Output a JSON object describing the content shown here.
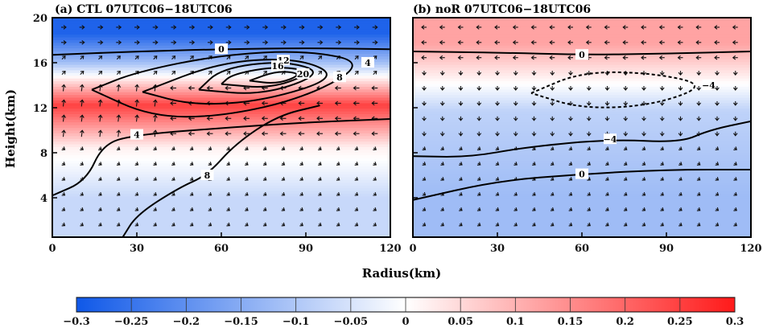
{
  "figure": {
    "xlabel": "Radius(km)",
    "ylabel": "Height(km)"
  },
  "chart_data": [
    {
      "type": "heatmap",
      "title": "(a) CTL 07UTC06−18UTC06",
      "xlabel": "Radius(km)",
      "ylabel": "Height(km)",
      "xlim": [
        0,
        120
      ],
      "ylim": [
        0.5,
        20
      ],
      "xticks": [
        0,
        30,
        60,
        90,
        120
      ],
      "yticks": [
        4,
        8,
        12,
        16,
        20
      ],
      "color_bands": [
        {
          "z": [
            0.5,
            7.5
          ],
          "value": -0.07
        },
        {
          "z": [
            7.5,
            9.5
          ],
          "value": 0.02
        },
        {
          "z": [
            9.5,
            15
          ],
          "value": 0.25
        },
        {
          "z": [
            15,
            17.2
          ],
          "value": -0.12
        },
        {
          "z": [
            17.2,
            20
          ],
          "value": -0.28
        }
      ],
      "contour_labels": [
        "0",
        "4",
        "8",
        "12",
        "16",
        "20",
        "4",
        "8",
        "0",
        "0"
      ],
      "contours": [
        {
          "level": 0,
          "points": [
            [
              0,
              16.7
            ],
            [
              30,
              17.0
            ],
            [
              60,
              17.2
            ],
            [
              90,
              17.3
            ],
            [
              120,
              17.2
            ]
          ]
        },
        {
          "level": 4,
          "points": [
            [
              14,
              13.6
            ],
            [
              35,
              11.2
            ],
            [
              60,
              11.2
            ],
            [
              90,
              12.9
            ],
            [
              112,
              16.0
            ],
            [
              90,
              17.1
            ],
            [
              60,
              16.7
            ],
            [
              30,
              15.2
            ],
            [
              14,
              13.6
            ]
          ]
        },
        {
          "level": 8,
          "points": [
            [
              32,
              13.4
            ],
            [
              50,
              12.2
            ],
            [
              75,
              12.6
            ],
            [
              102,
              14.7
            ],
            [
              88,
              16.4
            ],
            [
              60,
              16.1
            ],
            [
              32,
              13.4
            ]
          ]
        },
        {
          "level": 12,
          "points": [
            [
              52,
              13.6
            ],
            [
              75,
              13.1
            ],
            [
              97,
              15.1
            ],
            [
              82,
              16.2
            ],
            [
              60,
              15.5
            ],
            [
              52,
              13.6
            ]
          ]
        },
        {
          "level": 16,
          "points": [
            [
              60,
              14.1
            ],
            [
              78,
              13.7
            ],
            [
              93,
              15.2
            ],
            [
              80,
              15.7
            ],
            [
              64,
              15.0
            ],
            [
              60,
              14.1
            ]
          ]
        },
        {
          "level": 20,
          "points": [
            [
              70,
              14.4
            ],
            [
              80,
              14.1
            ],
            [
              89,
              15.0
            ],
            [
              80,
              15.3
            ],
            [
              70,
              14.4
            ]
          ]
        },
        {
          "level": 0,
          "points": [
            [
              0,
              4.2
            ],
            [
              12,
              5.5
            ],
            [
              18,
              8.8
            ],
            [
              30,
              9.6
            ],
            [
              60,
              10.2
            ],
            [
              90,
              10.7
            ],
            [
              120,
              11.0
            ]
          ]
        },
        {
          "level": 0,
          "points": [
            [
              25,
              0.5
            ],
            [
              30,
              2.5
            ],
            [
              45,
              4.9
            ],
            [
              55,
              6.0
            ],
            [
              65,
              8.8
            ],
            [
              80,
              11.3
            ],
            [
              95,
              12.2
            ]
          ]
        }
      ]
    },
    {
      "type": "heatmap",
      "title": "(b) noR 07UTC06−18UTC06",
      "xlabel": "Radius(km)",
      "ylabel": "",
      "xlim": [
        0,
        120
      ],
      "ylim": [
        0.5,
        20
      ],
      "xticks": [
        0,
        30,
        60,
        90,
        120
      ],
      "yticks": [
        4,
        8,
        12,
        16,
        20
      ],
      "color_bands": [
        {
          "z": [
            0.5,
            8
          ],
          "value": -0.12
        },
        {
          "z": [
            8,
            15.5
          ],
          "value": -0.08
        },
        {
          "z": [
            15.5,
            20
          ],
          "value": 0.12
        }
      ],
      "contour_labels": [
        "0",
        "−4",
        "−4",
        "0"
      ],
      "contours": [
        {
          "level": 0,
          "points": [
            [
              0,
              17.0
            ],
            [
              30,
              16.9
            ],
            [
              60,
              16.7
            ],
            [
              90,
              16.8
            ],
            [
              120,
              17.0
            ]
          ]
        },
        {
          "level": -4,
          "points": [
            [
              42,
              13.3
            ],
            [
              60,
              15.2
            ],
            [
              85,
              15.1
            ],
            [
              105,
              14.0
            ],
            [
              85,
              12.2
            ],
            [
              60,
              11.9
            ],
            [
              42,
              13.3
            ]
          ]
        },
        {
          "level": 0,
          "points": [
            [
              0,
              7.7
            ],
            [
              20,
              7.6
            ],
            [
              40,
              8.5
            ],
            [
              70,
              9.2
            ],
            [
              95,
              8.9
            ],
            [
              105,
              10.0
            ],
            [
              120,
              10.8
            ]
          ]
        },
        {
          "level": 0,
          "points": [
            [
              0,
              3.8
            ],
            [
              30,
              5.5
            ],
            [
              60,
              6.1
            ],
            [
              90,
              6.5
            ],
            [
              120,
              6.5
            ]
          ]
        }
      ]
    }
  ],
  "colorbar": {
    "ticks": [
      "−0.3",
      "−0.25",
      "−0.2",
      "−0.15",
      "−0.1",
      "−0.05",
      "0",
      "0.05",
      "0.1",
      "0.15",
      "0.2",
      "0.25",
      "0.3"
    ],
    "range": [
      -0.3,
      0.3
    ],
    "neg_color": "#0f58e8",
    "zero_color": "#ffffff",
    "pos_color": "#ff1a1a"
  }
}
